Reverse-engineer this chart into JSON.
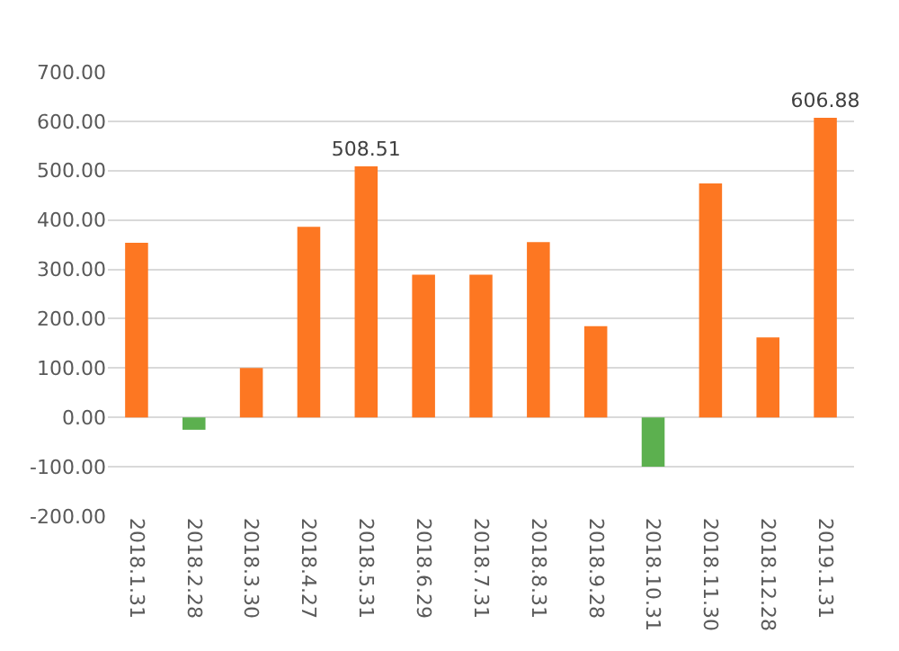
{
  "chart_data": {
    "type": "bar",
    "categories": [
      "2018.1.31",
      "2018.2.28",
      "2018.3.30",
      "2018.4.27",
      "2018.5.31",
      "2018.6.29",
      "2018.7.31",
      "2018.8.31",
      "2018.9.28",
      "2018.10.31",
      "2018.11.30",
      "2018.12.28",
      "2019.1.31"
    ],
    "values": [
      354,
      -25,
      100,
      386,
      508.51,
      289,
      289,
      355,
      185,
      -100,
      474,
      162,
      606.88
    ],
    "colors": [
      "#fd7722",
      "#5cb04f",
      "#fd7722",
      "#fd7722",
      "#fd7722",
      "#fd7722",
      "#fd7722",
      "#fd7722",
      "#fd7722",
      "#5cb04f",
      "#fd7722",
      "#fd7722",
      "#fd7722"
    ],
    "value_labels": [
      null,
      null,
      null,
      null,
      "508.51",
      null,
      null,
      null,
      null,
      null,
      null,
      null,
      "606.88"
    ],
    "ylim": [
      -200,
      700
    ],
    "yticks": [
      {
        "value": -200,
        "label": "-200.00"
      },
      {
        "value": -100,
        "label": "-100.00"
      },
      {
        "value": 0,
        "label": "0.00"
      },
      {
        "value": 100,
        "label": "100.00"
      },
      {
        "value": 200,
        "label": "200.00"
      },
      {
        "value": 300,
        "label": "300.00"
      },
      {
        "value": 400,
        "label": "400.00"
      },
      {
        "value": 500,
        "label": "500.00"
      },
      {
        "value": 600,
        "label": "600.00"
      },
      {
        "value": 700,
        "label": "700.00"
      }
    ],
    "grid": "y",
    "legend": false
  }
}
